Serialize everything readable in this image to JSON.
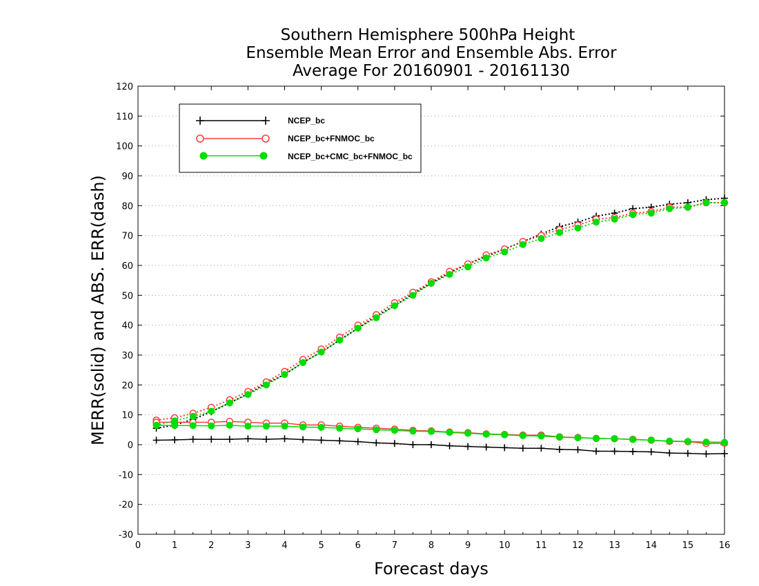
{
  "chart_data": {
    "type": "line",
    "title_lines": [
      "Southern Hemisphere 500hPa Height",
      "Ensemble Mean Error and Ensemble Abs. Error",
      "Average For 20160901 - 20161130"
    ],
    "xlabel": "Forecast days",
    "ylabel": "MERR(solid) and ABS. ERR(dash)",
    "xlim": [
      0,
      16
    ],
    "ylim": [
      -30,
      120
    ],
    "x_ticks": [
      0,
      1,
      2,
      3,
      4,
      5,
      6,
      7,
      8,
      9,
      10,
      11,
      12,
      13,
      14,
      15,
      16
    ],
    "y_ticks": [
      -30,
      -20,
      -10,
      0,
      10,
      20,
      30,
      40,
      50,
      60,
      70,
      80,
      90,
      100,
      110,
      120
    ],
    "grid": "dotted horizontal",
    "legend_position": "top-left",
    "x": [
      0.5,
      1,
      1.5,
      2,
      2.5,
      3,
      3.5,
      4,
      4.5,
      5,
      5.5,
      6,
      6.5,
      7,
      7.5,
      8,
      8.5,
      9,
      9.5,
      10,
      10.5,
      11,
      11.5,
      12,
      12.5,
      13,
      13.5,
      14,
      14.5,
      15,
      15.5,
      16
    ],
    "series": [
      {
        "name": "NCEP_bc",
        "color": "#000000",
        "marker": "plus",
        "merr": [
          1.5,
          1.6,
          1.8,
          1.8,
          1.8,
          2.0,
          1.8,
          2.0,
          1.7,
          1.5,
          1.3,
          1.0,
          0.6,
          0.4,
          0.0,
          0.0,
          -0.4,
          -0.6,
          -0.8,
          -1.0,
          -1.2,
          -1.2,
          -1.6,
          -1.7,
          -2.2,
          -2.2,
          -2.3,
          -2.4,
          -2.8,
          -2.9,
          -3.1,
          -3.0
        ],
        "abs_err": [
          5.5,
          6.5,
          8.5,
          11.0,
          14.0,
          17.0,
          20.5,
          23.5,
          27.5,
          31.0,
          35.0,
          39.0,
          43.0,
          46.5,
          50.5,
          54.0,
          57.5,
          60.5,
          63.0,
          65.5,
          68.0,
          70.5,
          73.0,
          74.5,
          76.5,
          77.5,
          79.0,
          79.5,
          80.5,
          81.0,
          82.0,
          82.5
        ]
      },
      {
        "name": "NCEP_bc+FNMOC_bc",
        "color": "#ff3a3a",
        "marker": "open-circle",
        "merr": [
          7.5,
          7.5,
          7.5,
          7.5,
          7.8,
          7.5,
          7.2,
          7.2,
          6.6,
          6.6,
          6.2,
          5.8,
          5.5,
          5.2,
          4.8,
          4.6,
          4.2,
          4.0,
          3.6,
          3.4,
          3.2,
          3.2,
          2.6,
          2.4,
          2.1,
          2.0,
          1.8,
          1.5,
          1.1,
          1.0,
          0.4,
          0.5
        ],
        "abs_err": [
          8.2,
          9.0,
          10.5,
          12.5,
          15.0,
          17.8,
          21.0,
          24.5,
          28.5,
          32.0,
          36.0,
          40.0,
          43.5,
          47.5,
          51.0,
          54.5,
          58.0,
          60.5,
          63.5,
          65.5,
          68.0,
          70.0,
          72.0,
          73.5,
          75.5,
          76.0,
          77.5,
          78.0,
          79.5,
          79.5,
          81.0,
          81.0
        ]
      },
      {
        "name": "NCEP_bc+CMC_bc+FNMOC_bc",
        "color": "#00dd00",
        "marker": "filled-circle",
        "merr": [
          6.5,
          6.4,
          6.4,
          6.3,
          6.5,
          6.2,
          6.2,
          6.2,
          5.9,
          5.8,
          5.5,
          5.3,
          5.0,
          4.8,
          4.5,
          4.4,
          4.1,
          3.8,
          3.5,
          3.3,
          3.0,
          2.9,
          2.5,
          2.3,
          2.1,
          2.0,
          1.7,
          1.5,
          1.2,
          1.1,
          0.9,
          0.8
        ],
        "abs_err": [
          6.5,
          8.0,
          9.5,
          11.2,
          14.0,
          16.8,
          20.0,
          23.5,
          27.5,
          31.0,
          35.0,
          39.0,
          42.5,
          46.5,
          50.0,
          54.0,
          57.0,
          59.5,
          62.5,
          64.5,
          67.0,
          69.0,
          71.0,
          72.5,
          74.5,
          75.5,
          77.0,
          77.5,
          79.0,
          79.5,
          81.0,
          81.0
        ]
      }
    ]
  }
}
